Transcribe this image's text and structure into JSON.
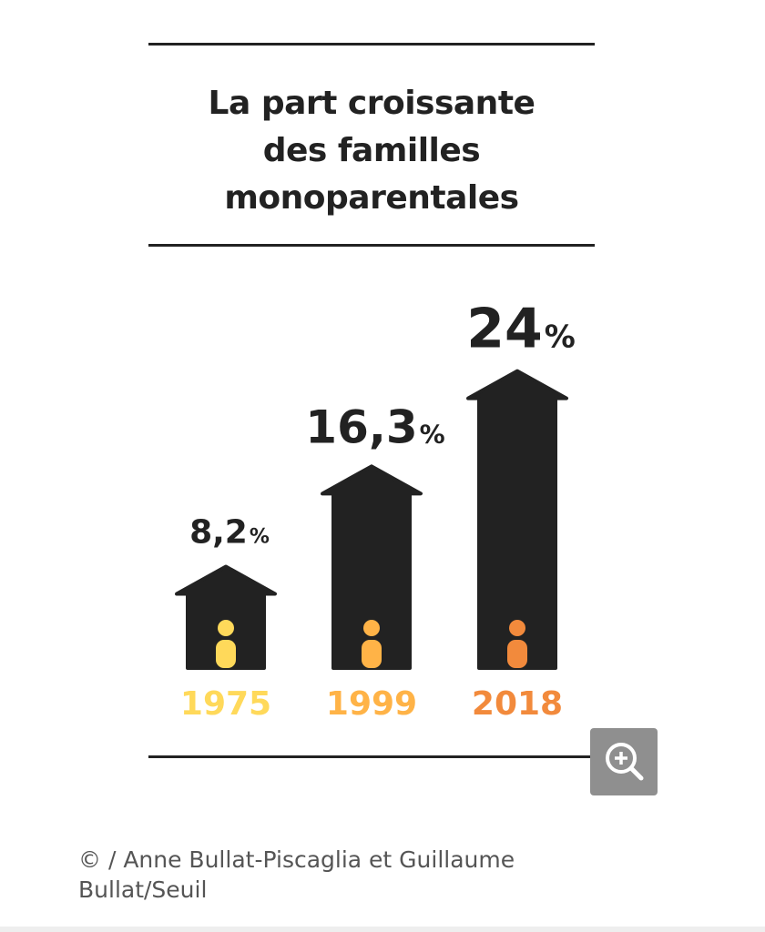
{
  "title_lines": [
    "La part croissante",
    "des familles",
    "monoparentales"
  ],
  "chart_data": {
    "type": "bar",
    "title": "La part croissante des familles monoparentales",
    "categories": [
      "1975",
      "1999",
      "2018"
    ],
    "values": [
      8.2,
      16.3,
      24
    ],
    "value_labels": [
      "8,2",
      "16,3",
      "24"
    ],
    "unit": "%",
    "colors": {
      "bar": "#222222",
      "years": [
        "#ffd95a",
        "#ffb347",
        "#f28a3c"
      ]
    }
  },
  "credit": "© / Anne Bullat-Piscaglia et Guillaume Bullat/Seuil",
  "icons": {
    "zoom": "zoom-in-icon",
    "person": "person-icon"
  }
}
